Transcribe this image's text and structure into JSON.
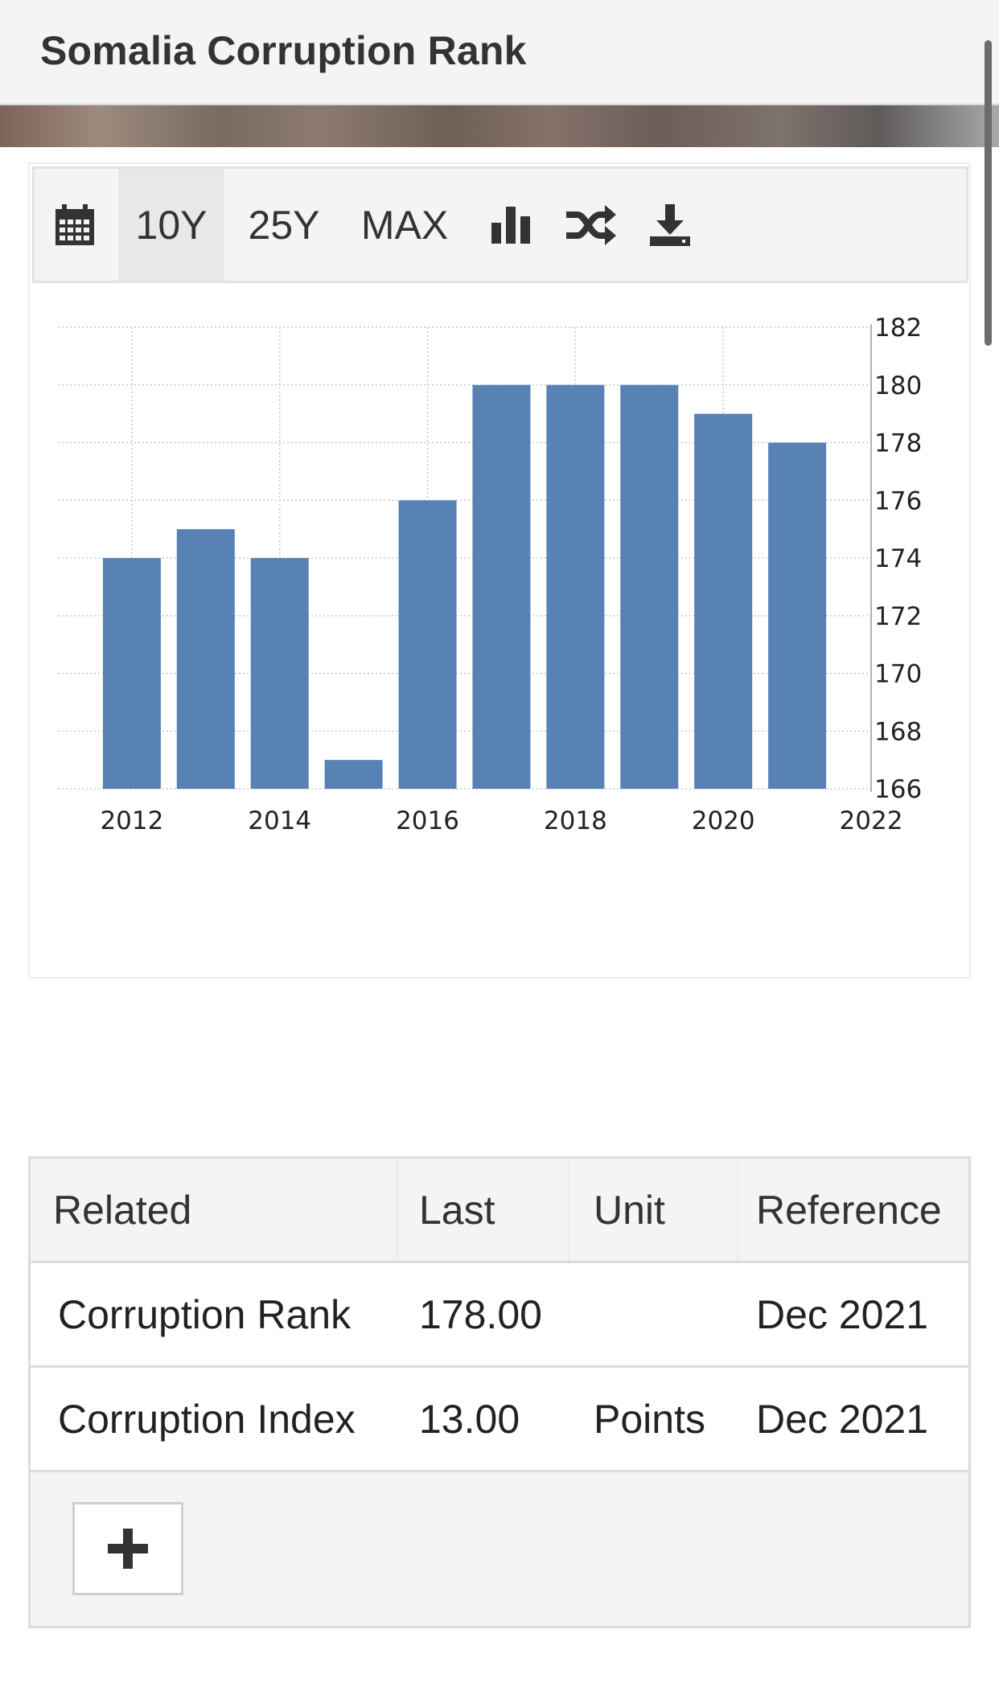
{
  "header": {
    "title": "Somalia Corruption Rank"
  },
  "toolbar": {
    "calendar_icon": "calendar-icon",
    "ranges": [
      "10Y",
      "25Y",
      "MAX"
    ],
    "active_range": "10Y",
    "bar_chart_icon": "bar-chart-icon",
    "compare_icon": "shuffle-icon",
    "download_icon": "download-icon"
  },
  "chart_data": {
    "type": "bar",
    "categories": [
      "2012",
      "2013",
      "2014",
      "2015",
      "2016",
      "2017",
      "2018",
      "2019",
      "2020",
      "2021"
    ],
    "values": [
      174,
      175,
      174,
      167,
      176,
      180,
      180,
      180,
      179,
      178
    ],
    "x_ticks": [
      "2012",
      "2014",
      "2016",
      "2018",
      "2020",
      "2022"
    ],
    "y_ticks": [
      166,
      168,
      170,
      172,
      174,
      176,
      178,
      180,
      182
    ],
    "ylim": [
      166,
      182
    ],
    "bar_color": "#5782b3",
    "grid": true,
    "title": "",
    "xlabel": "",
    "ylabel": ""
  },
  "table": {
    "headers": [
      "Related",
      "Last",
      "Unit",
      "Reference"
    ],
    "rows": [
      {
        "related": "Corruption Rank",
        "last": "178.00",
        "unit": "",
        "reference": "Dec 2021"
      },
      {
        "related": "Corruption Index",
        "last": "13.00",
        "unit": "Points",
        "reference": "Dec 2021"
      }
    ],
    "add_button_icon": "plus-icon"
  }
}
